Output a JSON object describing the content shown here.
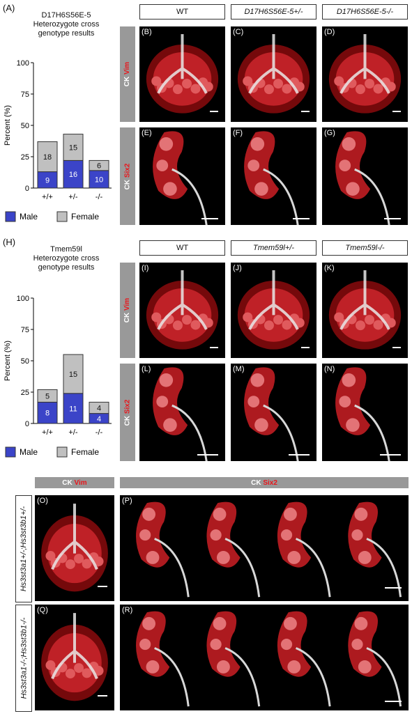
{
  "sectionA": {
    "label": "(A)",
    "title_line1": "D17H6S56E-5",
    "title_line2": "Heterozygote cross",
    "title_line3": "genotype results"
  },
  "sectionH": {
    "label": "(H)",
    "title_line1": "Tmem59l",
    "title_line2": "Heterozygote cross",
    "title_line3": "genotype results"
  },
  "chart_data": [
    {
      "type": "bar",
      "stacked": true,
      "categories": [
        "+/+",
        "+/-",
        "-/-"
      ],
      "series": [
        {
          "name": "Male",
          "values": [
            13,
            22,
            14
          ],
          "labels": [
            "9",
            "16",
            "10"
          ],
          "color": "#3b44c8"
        },
        {
          "name": "Female",
          "values": [
            24,
            21,
            8
          ],
          "labels": [
            "18",
            "15",
            "6"
          ],
          "color": "#c0c0c0"
        }
      ],
      "ylabel": "Percent (%)",
      "yticks": [
        0,
        25,
        50,
        75,
        100
      ],
      "ylim": [
        0,
        100
      ],
      "legend": "bottom"
    },
    {
      "type": "bar",
      "stacked": true,
      "categories": [
        "+/+",
        "+/-",
        "-/-"
      ],
      "series": [
        {
          "name": "Male",
          "values": [
            17,
            24,
            8
          ],
          "labels": [
            "8",
            "11",
            "4"
          ],
          "color": "#3b44c8"
        },
        {
          "name": "Female",
          "values": [
            10,
            31,
            9
          ],
          "labels": [
            "5",
            "15",
            "4"
          ],
          "color": "#c0c0c0"
        }
      ],
      "ylabel": "Percent (%)",
      "yticks": [
        0,
        25,
        50,
        75,
        100
      ],
      "ylim": [
        0,
        100
      ],
      "legend": "bottom"
    }
  ],
  "legend": {
    "male": "Male",
    "female": "Female"
  },
  "headers1": [
    "WT",
    "D17H6S56E-5+/-",
    "D17H6S56E-5-/-"
  ],
  "headers2": [
    "WT",
    "Tmem59l+/-",
    "Tmem59l-/-"
  ],
  "stain": {
    "ck": "CK",
    "vim": "Vim",
    "six2": "Six2"
  },
  "panels": {
    "B": "(B)",
    "C": "(C)",
    "D": "(D)",
    "E": "(E)",
    "F": "(F)",
    "G": "(G)",
    "I": "(I)",
    "J": "(J)",
    "K": "(K)",
    "L": "(L)",
    "M": "(M)",
    "N": "(N)",
    "O": "(O)",
    "P": "(P)",
    "Q": "(Q)",
    "R": "(R)"
  },
  "genotypes": {
    "row_het": "Hs3st3a1+/-;Hs3st3b1+/-",
    "row_ko": "Hs3st3a1-/-;Hs3st3b1-/-"
  },
  "colors": {
    "red": "#e8161c",
    "male": "#3b44c8",
    "female": "#c0c0c0",
    "gray_bar": "#999999"
  }
}
